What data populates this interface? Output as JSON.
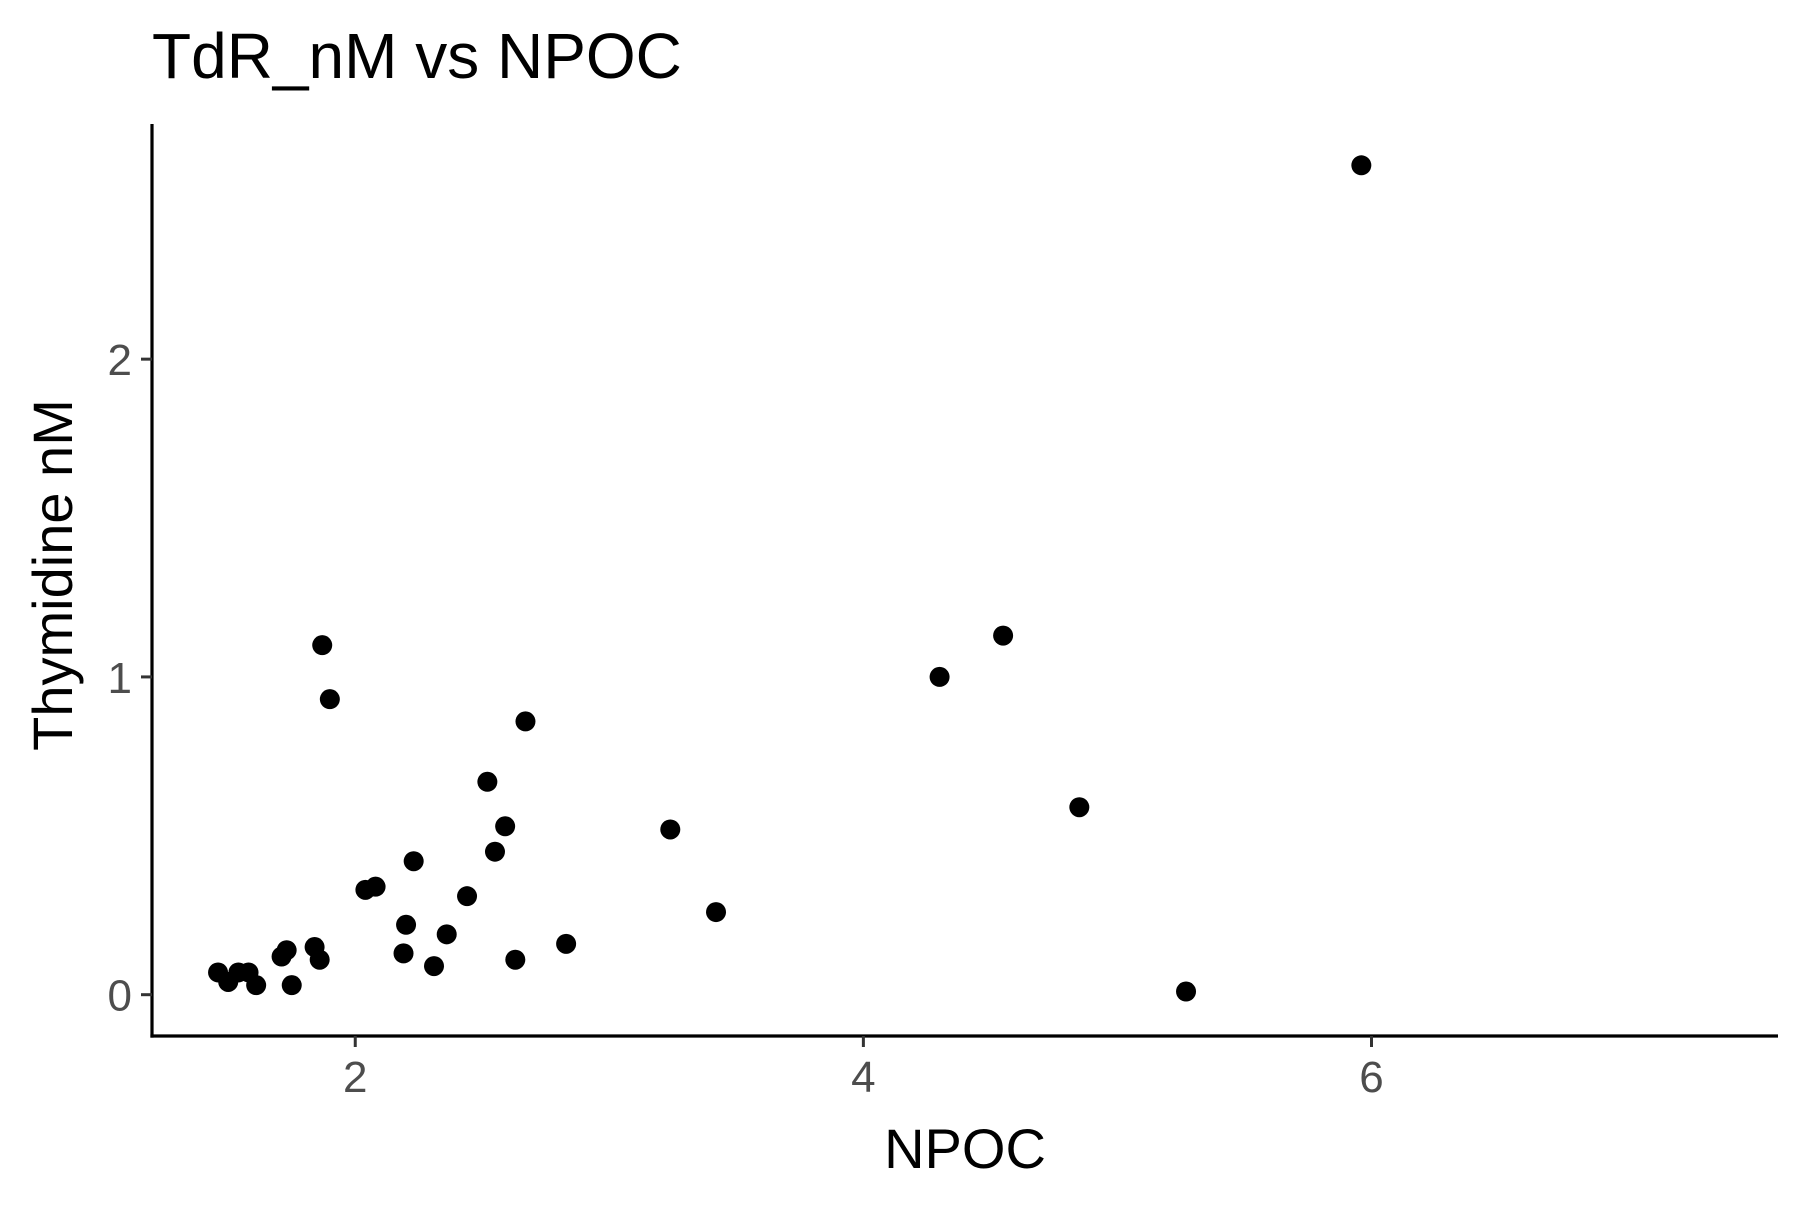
{
  "chart_data": {
    "type": "scatter",
    "title": "TdR_nM vs NPOC",
    "xlabel": "NPOC",
    "ylabel": "Thymidine nM",
    "xlim": [
      1.2,
      7.6
    ],
    "ylim": [
      -0.13,
      2.74
    ],
    "xticks": [
      2,
      4,
      6
    ],
    "yticks": [
      0,
      1,
      2
    ],
    "grid": false,
    "legend": "none",
    "point_color": "#000000",
    "points": [
      {
        "x": 1.46,
        "y": 0.07
      },
      {
        "x": 1.5,
        "y": 0.04
      },
      {
        "x": 1.54,
        "y": 0.07
      },
      {
        "x": 1.58,
        "y": 0.07
      },
      {
        "x": 1.61,
        "y": 0.03
      },
      {
        "x": 1.71,
        "y": 0.12
      },
      {
        "x": 1.73,
        "y": 0.14
      },
      {
        "x": 1.75,
        "y": 0.03
      },
      {
        "x": 1.84,
        "y": 0.15
      },
      {
        "x": 1.86,
        "y": 0.11
      },
      {
        "x": 1.87,
        "y": 1.1
      },
      {
        "x": 1.9,
        "y": 0.93
      },
      {
        "x": 2.04,
        "y": 0.33
      },
      {
        "x": 2.08,
        "y": 0.34
      },
      {
        "x": 2.19,
        "y": 0.13
      },
      {
        "x": 2.2,
        "y": 0.22
      },
      {
        "x": 2.23,
        "y": 0.42
      },
      {
        "x": 2.31,
        "y": 0.09
      },
      {
        "x": 2.36,
        "y": 0.19
      },
      {
        "x": 2.44,
        "y": 0.31
      },
      {
        "x": 2.52,
        "y": 0.67
      },
      {
        "x": 2.55,
        "y": 0.45
      },
      {
        "x": 2.59,
        "y": 0.53
      },
      {
        "x": 2.63,
        "y": 0.11
      },
      {
        "x": 2.67,
        "y": 0.86
      },
      {
        "x": 2.83,
        "y": 0.16
      },
      {
        "x": 3.24,
        "y": 0.52
      },
      {
        "x": 3.42,
        "y": 0.26
      },
      {
        "x": 4.3,
        "y": 1.0
      },
      {
        "x": 4.55,
        "y": 1.13
      },
      {
        "x": 4.85,
        "y": 0.59
      },
      {
        "x": 5.27,
        "y": 0.01
      },
      {
        "x": 5.96,
        "y": 2.61
      }
    ]
  }
}
